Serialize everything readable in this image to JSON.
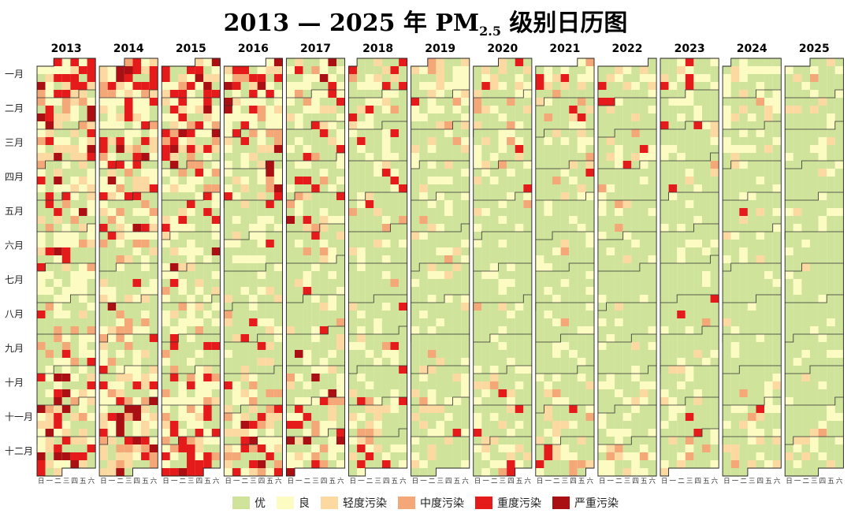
{
  "title": {
    "main": "2013 — 2025 年 PM",
    "sub": "2.5",
    "tail": " 级别日历图"
  },
  "chart_data": {
    "type": "heatmap",
    "years": [
      "2013",
      "2014",
      "2015",
      "2016",
      "2017",
      "2018",
      "2019",
      "2020",
      "2021",
      "2022",
      "2023",
      "2024",
      "2025"
    ],
    "months": [
      "一月",
      "二月",
      "三月",
      "四月",
      "五月",
      "六月",
      "七月",
      "八月",
      "九月",
      "十月",
      "十一月",
      "十二月"
    ],
    "weekdays": [
      "日",
      "一",
      "二",
      "三",
      "四",
      "五",
      "六"
    ],
    "legend": [
      {
        "label": "优",
        "color": "#cfe39a"
      },
      {
        "label": "良",
        "color": "#fbfbc2"
      },
      {
        "label": "轻度污染",
        "color": "#fbd9a0"
      },
      {
        "label": "中度污染",
        "color": "#f4a878"
      },
      {
        "label": "重度污染",
        "color": "#e51a1a"
      },
      {
        "label": "严重污染",
        "color": "#aa0f14"
      }
    ],
    "level_distribution": {
      "2013": [
        0.3,
        0.28,
        0.14,
        0.09,
        0.14,
        0.05
      ],
      "2014": [
        0.32,
        0.28,
        0.14,
        0.09,
        0.12,
        0.05
      ],
      "2015": [
        0.36,
        0.28,
        0.12,
        0.08,
        0.12,
        0.04
      ],
      "2016": [
        0.42,
        0.26,
        0.12,
        0.07,
        0.09,
        0.04
      ],
      "2017": [
        0.52,
        0.24,
        0.1,
        0.06,
        0.06,
        0.02
      ],
      "2018": [
        0.6,
        0.22,
        0.09,
        0.05,
        0.04,
        0.0
      ],
      "2019": [
        0.66,
        0.21,
        0.08,
        0.03,
        0.02,
        0.0
      ],
      "2020": [
        0.68,
        0.19,
        0.07,
        0.03,
        0.03,
        0.0
      ],
      "2021": [
        0.72,
        0.17,
        0.06,
        0.03,
        0.02,
        0.0
      ],
      "2022": [
        0.74,
        0.18,
        0.05,
        0.02,
        0.01,
        0.0
      ],
      "2023": [
        0.72,
        0.18,
        0.06,
        0.02,
        0.02,
        0.0
      ],
      "2024": [
        0.76,
        0.17,
        0.05,
        0.015,
        0.005,
        0.0
      ],
      "2025": [
        0.8,
        0.15,
        0.04,
        0.01,
        0.0,
        0.0
      ]
    },
    "first_weekday": {
      "2013": 2,
      "2014": 3,
      "2015": 4,
      "2016": 5,
      "2017": 0,
      "2018": 1,
      "2019": 2,
      "2020": 3,
      "2021": 5,
      "2022": 6,
      "2023": 0,
      "2024": 1,
      "2025": 3
    },
    "leap_years": [
      "2016",
      "2020",
      "2024"
    ]
  }
}
